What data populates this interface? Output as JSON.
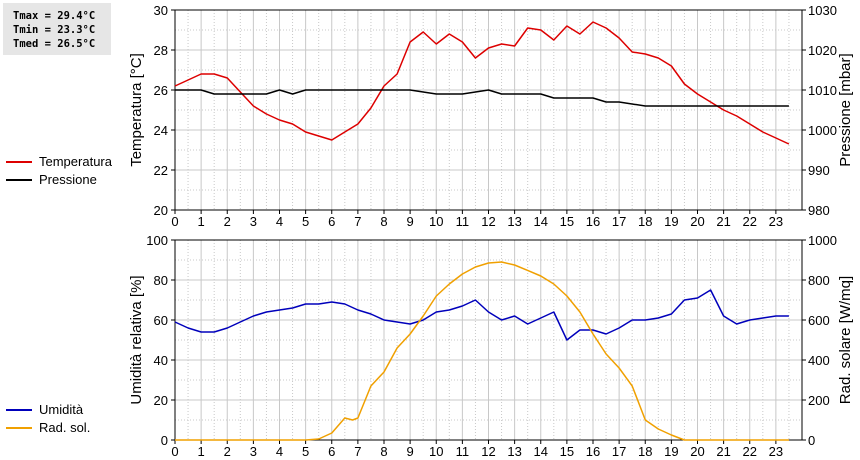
{
  "stats": {
    "tmax": "Tmax = 29.4°C",
    "tmin": "Tmin = 23.3°C",
    "tmed": "Tmed = 26.5°C"
  },
  "colors": {
    "temperature": "#dd0000",
    "pressure": "#000000",
    "humidity": "#0000bb",
    "solar": "#f0a000",
    "grid": "#c8c8c8"
  },
  "legend_top": [
    {
      "label": "Temperatura",
      "color": "#dd0000"
    },
    {
      "label": "Pressione",
      "color": "#000000"
    }
  ],
  "legend_bottom": [
    {
      "label": "Umidità",
      "color": "#0000bb"
    },
    {
      "label": "Rad. sol.",
      "color": "#f0a000"
    }
  ],
  "chart_data": [
    {
      "type": "line",
      "xlim": [
        0,
        24
      ],
      "x_ticks": [
        "0",
        "1",
        "2",
        "3",
        "4",
        "5",
        "6",
        "7",
        "8",
        "9",
        "10",
        "11",
        "12",
        "13",
        "14",
        "15",
        "16",
        "17",
        "18",
        "19",
        "20",
        "21",
        "22",
        "23"
      ],
      "ylabel_left": "Temperatura [°C]",
      "ylim_left": [
        20,
        30
      ],
      "y_ticks_left": [
        "20",
        "22",
        "24",
        "26",
        "28",
        "30"
      ],
      "ylabel_right": "Pressione [mbar]",
      "ylim_right": [
        980,
        1030
      ],
      "y_ticks_right": [
        "980",
        "990",
        "1000",
        "1010",
        "1020",
        "1030"
      ],
      "grid": true,
      "series": [
        {
          "name": "Temperatura",
          "axis": "left",
          "x": [
            0,
            0.5,
            1,
            1.5,
            2,
            2.5,
            3,
            3.5,
            4,
            4.5,
            5,
            5.5,
            6,
            6.5,
            7,
            7.5,
            8,
            8.5,
            9,
            9.5,
            10,
            10.5,
            11,
            11.5,
            12,
            12.5,
            13,
            13.5,
            14,
            14.5,
            15,
            15.5,
            16,
            16.5,
            17,
            17.5,
            18,
            18.5,
            19,
            19.5,
            20,
            20.5,
            21,
            21.5,
            22,
            22.5,
            23,
            23.5
          ],
          "y": [
            26.2,
            26.5,
            26.8,
            26.8,
            26.6,
            25.9,
            25.2,
            24.8,
            24.5,
            24.3,
            23.9,
            23.7,
            23.5,
            23.9,
            24.3,
            25.1,
            26.2,
            26.8,
            28.4,
            28.9,
            28.3,
            28.8,
            28.4,
            27.6,
            28.1,
            28.3,
            28.2,
            29.1,
            29.0,
            28.5,
            29.2,
            28.8,
            29.4,
            29.1,
            28.6,
            27.9,
            27.8,
            27.6,
            27.2,
            26.3,
            25.8,
            25.4,
            25.0,
            24.7,
            24.3,
            23.9,
            23.6,
            23.3
          ]
        },
        {
          "name": "Pressione",
          "axis": "right",
          "x": [
            0,
            1,
            1.5,
            2,
            3,
            3.5,
            4,
            4.5,
            5,
            6,
            7,
            8,
            9,
            10,
            11,
            12,
            12.5,
            13,
            14,
            14.5,
            15,
            16,
            16.5,
            17,
            18,
            19,
            20,
            21,
            22,
            23,
            23.5
          ],
          "y": [
            1010,
            1010,
            1009,
            1009,
            1009,
            1009,
            1010,
            1009,
            1010,
            1010,
            1010,
            1010,
            1010,
            1009,
            1009,
            1010,
            1009,
            1009,
            1009,
            1008,
            1008,
            1008,
            1007,
            1007,
            1006,
            1006,
            1006,
            1006,
            1006,
            1006,
            1006
          ]
        }
      ]
    },
    {
      "type": "line",
      "xlim": [
        0,
        24
      ],
      "x_ticks": [
        "0",
        "1",
        "2",
        "3",
        "4",
        "5",
        "6",
        "7",
        "8",
        "9",
        "10",
        "11",
        "12",
        "13",
        "14",
        "15",
        "16",
        "17",
        "18",
        "19",
        "20",
        "21",
        "22",
        "23"
      ],
      "ylabel_left": "Umidità relativa [%]",
      "ylim_left": [
        0,
        100
      ],
      "y_ticks_left": [
        "0",
        "20",
        "40",
        "60",
        "80",
        "100"
      ],
      "ylabel_right": "Rad. solare [W/mq]",
      "ylim_right": [
        0,
        1000
      ],
      "y_ticks_right": [
        "0",
        "200",
        "400",
        "600",
        "800",
        "1000"
      ],
      "grid": true,
      "series": [
        {
          "name": "Umidità",
          "axis": "left",
          "x": [
            0,
            0.5,
            1,
            1.5,
            2,
            2.5,
            3,
            3.5,
            4,
            4.5,
            5,
            5.5,
            6,
            6.5,
            7,
            7.5,
            8,
            8.5,
            9,
            9.5,
            10,
            10.5,
            11,
            11.5,
            12,
            12.5,
            13,
            13.5,
            14,
            14.5,
            15,
            15.5,
            16,
            16.5,
            17,
            17.5,
            18,
            18.5,
            19,
            19.5,
            20,
            20.5,
            21,
            21.5,
            22,
            22.5,
            23,
            23.5
          ],
          "y": [
            59,
            56,
            54,
            54,
            56,
            59,
            62,
            64,
            65,
            66,
            68,
            68,
            69,
            68,
            65,
            63,
            60,
            59,
            58,
            60,
            64,
            65,
            67,
            70,
            64,
            60,
            62,
            58,
            61,
            64,
            50,
            55,
            55,
            53,
            56,
            60,
            60,
            61,
            63,
            70,
            71,
            75,
            62,
            58,
            60,
            61,
            62,
            62
          ]
        },
        {
          "name": "Rad. sol.",
          "axis": "right",
          "x": [
            0,
            1,
            2,
            3,
            4,
            5,
            5.5,
            6,
            6.5,
            6.8,
            7,
            7.5,
            8,
            8.5,
            9,
            9.5,
            10,
            10.5,
            11,
            11.5,
            12,
            12.5,
            13,
            13.5,
            14,
            14.5,
            15,
            15.5,
            16,
            16.5,
            17,
            17.5,
            18,
            18.5,
            19,
            19.5,
            20,
            21,
            22,
            23,
            23.5
          ],
          "y": [
            0,
            0,
            0,
            0,
            0,
            0,
            5,
            35,
            110,
            100,
            110,
            270,
            340,
            460,
            530,
            620,
            720,
            780,
            830,
            865,
            885,
            890,
            875,
            848,
            820,
            780,
            720,
            640,
            530,
            430,
            360,
            270,
            100,
            55,
            25,
            0,
            0,
            0,
            0,
            0,
            0
          ]
        }
      ]
    }
  ]
}
